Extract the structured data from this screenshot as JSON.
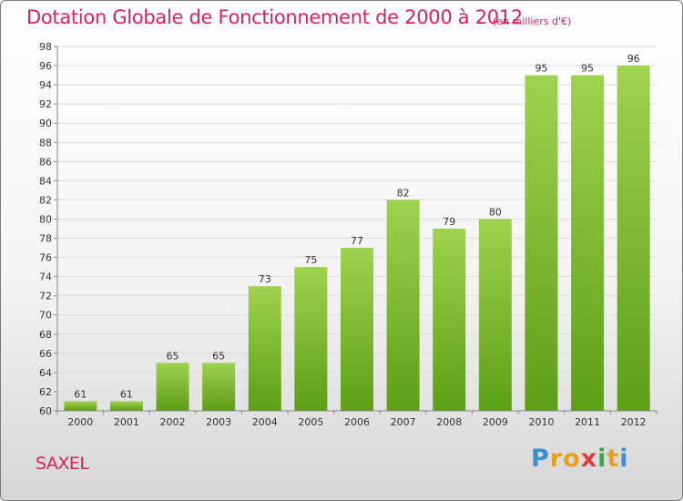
{
  "title": "Dotation Globale de Fonctionnement de 2000 à 2012",
  "unit_note": "(en milliers d'€)",
  "commune": "SAXEL",
  "logo": {
    "letters": [
      "P",
      "r",
      "o",
      "x",
      "i",
      "t",
      "i"
    ],
    "colors": [
      "#3a8fd0",
      "#e8a020",
      "#e8a020",
      "#e03a3a",
      "#3aa84a",
      "#e8a020",
      "#3a8fd0"
    ]
  },
  "colors": {
    "title": "#d4245e",
    "bar_light": "#9fd24f",
    "bar_dark": "#5e9e17"
  },
  "chart_data": {
    "type": "bar",
    "title": "Dotation Globale de Fonctionnement de 2000 à 2012",
    "subtitle": "(en milliers d'€)",
    "categories": [
      "2000",
      "2001",
      "2002",
      "2003",
      "2004",
      "2005",
      "2006",
      "2007",
      "2008",
      "2009",
      "2010",
      "2011",
      "2012"
    ],
    "values": [
      61,
      61,
      65,
      65,
      73,
      75,
      77,
      82,
      79,
      80,
      95,
      95,
      96
    ],
    "ylim": [
      60,
      98
    ],
    "yticks": [
      60,
      62,
      64,
      66,
      68,
      70,
      72,
      74,
      76,
      78,
      80,
      82,
      84,
      86,
      88,
      90,
      92,
      94,
      96,
      98
    ],
    "grid": true,
    "xlabel": "",
    "ylabel": ""
  }
}
